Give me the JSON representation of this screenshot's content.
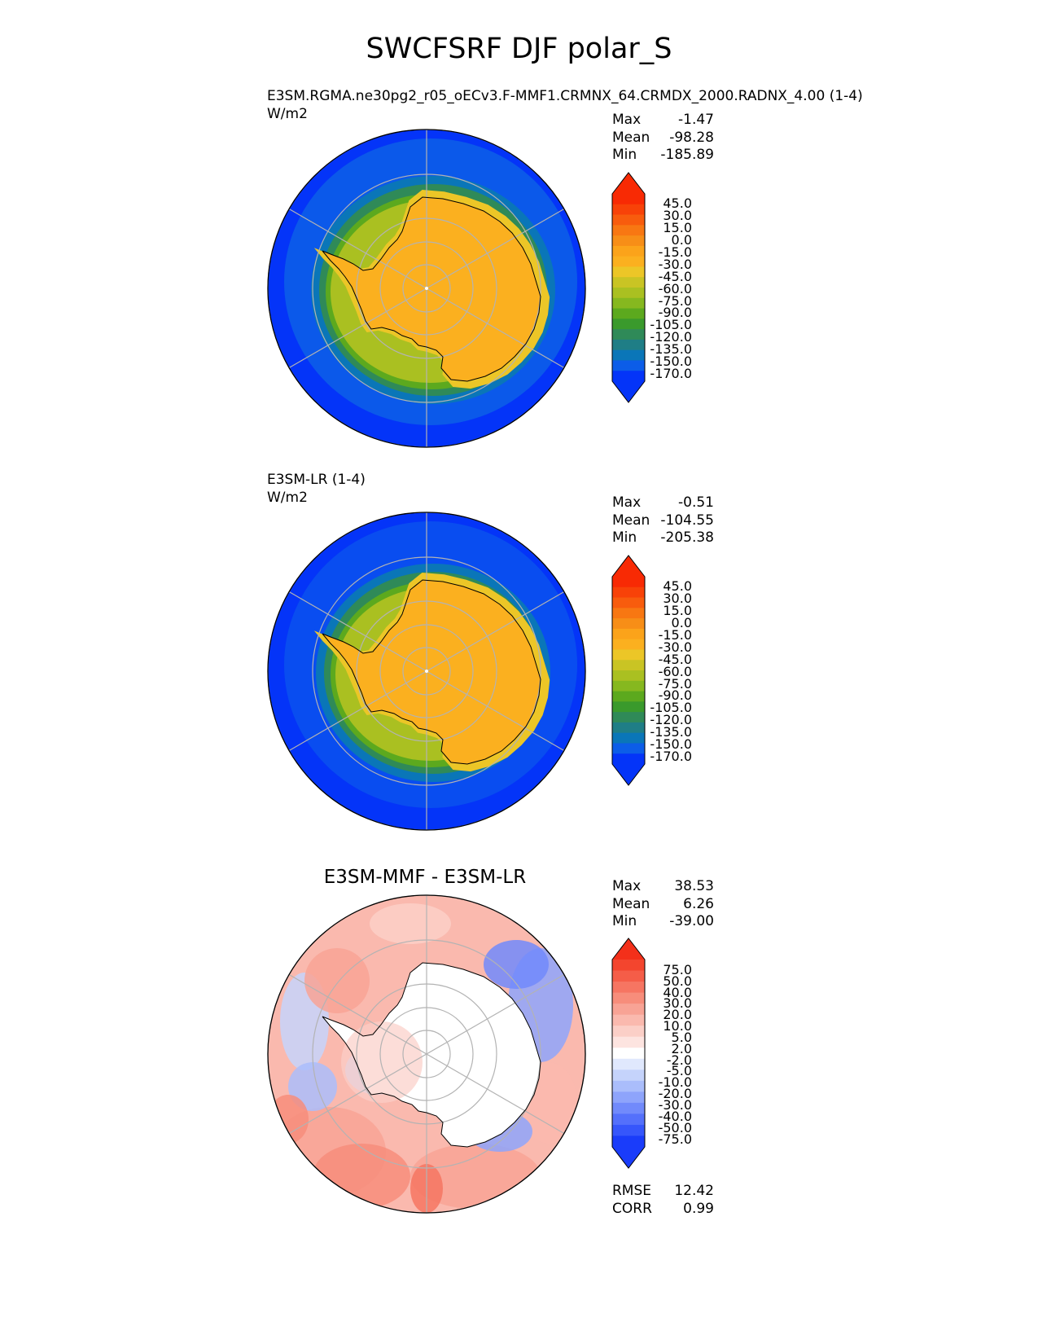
{
  "figure": {
    "title": "SWCFSRF DJF polar_S"
  },
  "colors": {
    "main_palette": [
      "#0434f8",
      "#0c5de8",
      "#0a76b8",
      "#1f7e86",
      "#2f8a58",
      "#3a9a2c",
      "#5ca91e",
      "#86b81f",
      "#aac021",
      "#c9c424",
      "#ecc627",
      "#fbb01f",
      "#fba31a",
      "#f78e17",
      "#f87712",
      "#f85c0d",
      "#f84208",
      "#f82a04"
    ],
    "main_under": "#0434f8",
    "main_over": "#f82a04",
    "diff_palette": [
      "#1a3cfa",
      "#3656fb",
      "#5470fb",
      "#718afb",
      "#8ea4fb",
      "#aabdfb",
      "#c5d3fb",
      "#e0e8fd",
      "#ffffff",
      "#fde4e0",
      "#fbcfc7",
      "#fab9ae",
      "#f8a395",
      "#f78d7b",
      "#f67562",
      "#f55d48",
      "#f3452e"
    ],
    "diff_under": "#1a3cfa",
    "diff_over": "#f3301a",
    "coastline": "#000000",
    "grid": "#b3b3b3"
  },
  "panels": [
    {
      "id": "test",
      "subtitle": "E3SM.RGMA.ne30pg2_r05_oECv3.F-MMF1.CRMNX_64.CRMDX_2000.RADNX_4.00 (1-4)",
      "units": "W/m2",
      "stats": [
        {
          "label": "Max",
          "value": "-1.47"
        },
        {
          "label": "Mean",
          "value": "-98.28"
        },
        {
          "label": "Min",
          "value": "-185.89"
        }
      ],
      "colorbar_labels": [
        "45.0",
        "30.0",
        "15.0",
        "0.0",
        "-15.0",
        "-30.0",
        "-45.0",
        "-60.0",
        "-75.0",
        "-90.0",
        "-105.0",
        "-120.0",
        "-135.0",
        "-150.0",
        "-170.0"
      ]
    },
    {
      "id": "reference",
      "subtitle": "E3SM-LR (1-4)",
      "units": "W/m2",
      "stats": [
        {
          "label": "Max",
          "value": "-0.51"
        },
        {
          "label": "Mean",
          "value": "-104.55"
        },
        {
          "label": "Min",
          "value": "-205.38"
        }
      ],
      "colorbar_labels": [
        "45.0",
        "30.0",
        "15.0",
        "0.0",
        "-15.0",
        "-30.0",
        "-45.0",
        "-60.0",
        "-75.0",
        "-90.0",
        "-105.0",
        "-120.0",
        "-135.0",
        "-150.0",
        "-170.0"
      ]
    },
    {
      "id": "difference",
      "title": "E3SM-MMF - E3SM-LR",
      "stats": [
        {
          "label": "Max",
          "value": "38.53"
        },
        {
          "label": "Mean",
          "value": "6.26"
        },
        {
          "label": "Min",
          "value": "-39.00"
        }
      ],
      "colorbar_labels": [
        "75.0",
        "50.0",
        "40.0",
        "30.0",
        "20.0",
        "10.0",
        "5.0",
        "2.0",
        "-2.0",
        "-5.0",
        "-10.0",
        "-20.0",
        "-30.0",
        "-40.0",
        "-50.0",
        "-75.0"
      ],
      "metrics": [
        {
          "label": "RMSE",
          "value": "12.42"
        },
        {
          "label": "CORR",
          "value": "0.99"
        }
      ]
    }
  ],
  "chart_data": [
    {
      "type": "heatmap",
      "projection": "south polar stereographic",
      "subtitle": "E3SM.RGMA.ne30pg2_r05_oECv3.F-MMF1.CRMNX_64.CRMDX_2000.RADNX_4.00 (1-4)",
      "units": "W/m2",
      "max": -1.47,
      "mean": -98.28,
      "min": -185.89,
      "levels": [
        -170,
        -150,
        -135,
        -120,
        -105,
        -90,
        -75,
        -60,
        -45,
        -30,
        -15,
        0,
        15,
        30,
        45
      ],
      "extend": "both",
      "rings_approx": [
        {
          "band": "antarctic interior",
          "value": -30
        },
        {
          "band": "coastal margin",
          "value": -60
        },
        {
          "band": "sea-ice zone",
          "value": -120
        },
        {
          "band": "southern ocean",
          "value": -165
        }
      ]
    },
    {
      "type": "heatmap",
      "projection": "south polar stereographic",
      "subtitle": "E3SM-LR (1-4)",
      "units": "W/m2",
      "max": -0.51,
      "mean": -104.55,
      "min": -205.38,
      "levels": [
        -170,
        -150,
        -135,
        -120,
        -105,
        -90,
        -75,
        -60,
        -45,
        -30,
        -15,
        0,
        15,
        30,
        45
      ],
      "extend": "both",
      "rings_approx": [
        {
          "band": "antarctic interior",
          "value": -30
        },
        {
          "band": "coastal margin",
          "value": -70
        },
        {
          "band": "sea-ice zone",
          "value": -130
        },
        {
          "band": "southern ocean",
          "value": -175
        }
      ]
    },
    {
      "type": "heatmap",
      "projection": "south polar stereographic",
      "title": "E3SM-MMF - E3SM-LR",
      "max": 38.53,
      "mean": 6.26,
      "min": -39.0,
      "rmse": 12.42,
      "corr": 0.99,
      "levels": [
        -75,
        -50,
        -40,
        -30,
        -20,
        -10,
        -5,
        -2,
        2,
        5,
        10,
        20,
        30,
        40,
        50,
        75
      ],
      "extend": "both"
    }
  ]
}
